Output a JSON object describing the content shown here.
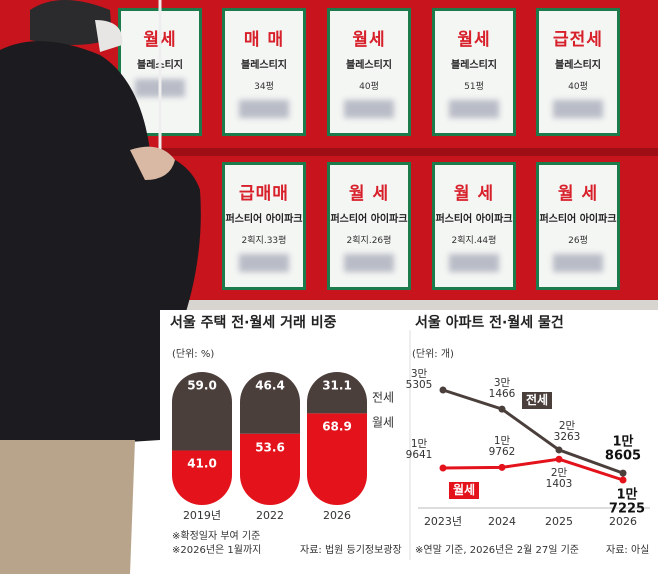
{
  "photo": {
    "signs": [
      {
        "deal": "월세",
        "name": "블레스티지"
      },
      {
        "deal": "매 매",
        "name": "블레스티지",
        "size": "34평"
      },
      {
        "deal": "월세",
        "name": "블레스티지",
        "size": "40평"
      },
      {
        "deal": "월세",
        "name": "블레스티지",
        "size": "51평"
      },
      {
        "deal": "급전세",
        "name": "블레스티지",
        "size": "40평"
      },
      {
        "deal": "급매매",
        "name": "퍼스티어 아이파크",
        "size": "2획지.33평"
      },
      {
        "deal": "월 세",
        "name": "퍼스티어 아이파크",
        "size": "2획지.26평"
      },
      {
        "deal": "월 세",
        "name": "퍼스티어 아이파크",
        "size": "2획지.44평"
      },
      {
        "deal": "월 세",
        "name": "퍼스티어 아이파크",
        "size": "26평"
      }
    ]
  },
  "chart_data": [
    {
      "type": "bar",
      "stacked": true,
      "title": "서울 주택 전·월세 거래 비중",
      "unit": "(단위: %)",
      "categories": [
        "2019년",
        "2022",
        "2026"
      ],
      "series": [
        {
          "name": "전세",
          "color": "#4b3f3c",
          "values": [
            59.0,
            46.4,
            31.1
          ],
          "value_labels": [
            "59.0",
            "46.4",
            "31.1"
          ]
        },
        {
          "name": "월세",
          "color": "#e3121b",
          "values": [
            41.0,
            53.6,
            68.9
          ],
          "value_labels": [
            "41.0",
            "53.6",
            "68.9"
          ]
        }
      ],
      "notes": [
        "※확정일자 부여 기준",
        "※2026년은 1월까지"
      ],
      "source": "자료: 법원 등기정보광장"
    },
    {
      "type": "line",
      "title": "서울 아파트 전·월세 물건",
      "unit": "(단위: 개)",
      "categories": [
        "2023년",
        "2024",
        "2025",
        "2026"
      ],
      "series": [
        {
          "name": "전세",
          "color": "#4b3f3c",
          "values": [
            35305,
            31466,
            23263,
            18605
          ],
          "value_labels": [
            "3만\n5305",
            "3만\n1466",
            "2만\n3263",
            "1만\n8605"
          ]
        },
        {
          "name": "월세",
          "color": "#e3121b",
          "values": [
            19641,
            19762,
            21403,
            17225
          ],
          "value_labels": [
            "1만\n9641",
            "1만\n9762",
            "2만\n1403",
            "1만\n7225"
          ]
        }
      ],
      "notes": [
        "※연말 기준, 2026년은 2월 27일 기준"
      ],
      "source": "자료: 아실"
    }
  ]
}
